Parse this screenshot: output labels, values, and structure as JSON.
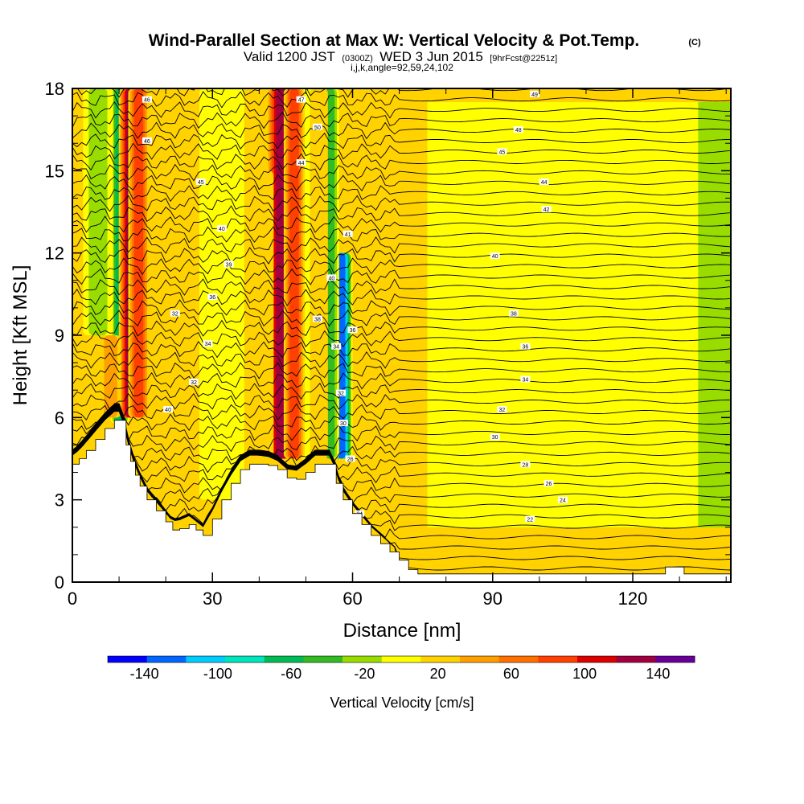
{
  "header": {
    "title": "Wind-Parallel Section at Max W: Vertical Velocity & Pot.Temp.",
    "copyright": "(C)",
    "valid_prefix": "Valid 1200 JST",
    "valid_utc": "(0300Z)",
    "valid_date": "WED 3 Jun 2015",
    "forecast": "[9hrFcst@2251z]",
    "indices": "i,j,k,angle=92,59,24,102"
  },
  "chart_data": {
    "type": "heatmap",
    "xlabel": "Distance [nm]",
    "ylabel": "Height [Kft MSL]",
    "xlim": [
      0,
      141
    ],
    "ylim": [
      0,
      18
    ],
    "xticks": [
      "0",
      "30",
      "60",
      "90",
      "120"
    ],
    "yticks": [
      "0",
      "3",
      "6",
      "9",
      "12",
      "15",
      "18"
    ],
    "grid": false,
    "contour_field": "potential temperature",
    "colorbar": {
      "label": "Vertical Velocity [cm/s]",
      "tick_labels": [
        "-140",
        "-100",
        "-60",
        "-20",
        "20",
        "60",
        "100",
        "140"
      ],
      "bins": [
        -160,
        -140,
        -120,
        -100,
        -80,
        -60,
        -40,
        -20,
        0,
        20,
        40,
        60,
        80,
        100,
        120,
        140,
        160
      ],
      "colors": [
        "#0000ff",
        "#0066ff",
        "#00ccff",
        "#00e5bb",
        "#00bb55",
        "#33bb22",
        "#99dd00",
        "#ffff00",
        "#ffd200",
        "#ffa000",
        "#ff7000",
        "#ff4000",
        "#dd0000",
        "#a00040",
        "#660099"
      ]
    },
    "background_bin_color": "#99dd00",
    "terrain_height_kft": [
      [
        0,
        4.3
      ],
      [
        1.5,
        4.5
      ],
      [
        3,
        4.8
      ],
      [
        5,
        5.2
      ],
      [
        7,
        5.6
      ],
      [
        9,
        5.9
      ],
      [
        10.5,
        5.9
      ],
      [
        11.5,
        5.0
      ],
      [
        12.5,
        4.4
      ],
      [
        13.5,
        3.9
      ],
      [
        14.5,
        3.5
      ],
      [
        16,
        3.0
      ],
      [
        18,
        2.6
      ],
      [
        20,
        2.2
      ],
      [
        21.5,
        1.9
      ],
      [
        23,
        1.95
      ],
      [
        25,
        2.1
      ],
      [
        26.5,
        1.9
      ],
      [
        28,
        1.7
      ],
      [
        30,
        2.3
      ],
      [
        32,
        3.0
      ],
      [
        34,
        3.6
      ],
      [
        36,
        4.1
      ],
      [
        38,
        4.3
      ],
      [
        40,
        4.3
      ],
      [
        42,
        4.25
      ],
      [
        44,
        4.1
      ],
      [
        46,
        3.8
      ],
      [
        48,
        3.75
      ],
      [
        50,
        4.0
      ],
      [
        52,
        4.3
      ],
      [
        54,
        4.3
      ],
      [
        55.5,
        4.3
      ],
      [
        56.5,
        3.6
      ],
      [
        58,
        3.0
      ],
      [
        60,
        2.5
      ],
      [
        62,
        2.1
      ],
      [
        64,
        1.7
      ],
      [
        66,
        1.4
      ],
      [
        68,
        1.1
      ],
      [
        70,
        0.8
      ],
      [
        72,
        0.45
      ],
      [
        74,
        0.3
      ],
      [
        76,
        0.3
      ],
      [
        126,
        0.3
      ],
      [
        127,
        0.55
      ],
      [
        130,
        0.55
      ],
      [
        131,
        0.3
      ],
      [
        141,
        0.3
      ]
    ],
    "updraft_columns": [
      {
        "x": 12.5,
        "width_nm": 1.6,
        "w": 110,
        "zmin": 6.0,
        "zmax": 18
      },
      {
        "x": 14.2,
        "width_nm": 1.4,
        "w": 80,
        "zmin": 6.0,
        "zmax": 18
      },
      {
        "x": 44.8,
        "width_nm": 2.0,
        "w": 110,
        "zmin": 4.5,
        "zmax": 18
      },
      {
        "x": 47.5,
        "width_nm": 1.4,
        "w": 70,
        "zmin": 4.5,
        "zmax": 18
      },
      {
        "x": 8.2,
        "width_nm": 1.4,
        "w": 30,
        "zmin": 6.0,
        "zmax": 9
      },
      {
        "x": 18.5,
        "width_nm": 1.5,
        "w": 25,
        "zmin": 3.0,
        "zmax": 18
      },
      {
        "x": 22.5,
        "width_nm": 1.6,
        "w": 25,
        "zmin": 2.5,
        "zmax": 12
      },
      {
        "x": 40.5,
        "width_nm": 1.6,
        "w": 28,
        "zmin": 4.5,
        "zmax": 15
      },
      {
        "x": 52.8,
        "width_nm": 1.2,
        "w": 25,
        "zmin": 4.5,
        "zmax": 18
      }
    ],
    "downdraft_columns": [
      {
        "x": 10.2,
        "width_nm": 1.3,
        "w": -70,
        "zmin": 5.8,
        "zmax": 18
      },
      {
        "x": 15.6,
        "width_nm": 1.3,
        "w": -130,
        "zmin": 6.5,
        "zmax": 18
      },
      {
        "x": 57.6,
        "width_nm": 1.5,
        "w": -140,
        "zmin": 4.5,
        "zmax": 12
      },
      {
        "x": 55.2,
        "width_nm": 1.2,
        "w": -60,
        "zmin": 4.5,
        "zmax": 18
      },
      {
        "x": 5.5,
        "width_nm": 2.0,
        "w": -30,
        "zmin": 9,
        "zmax": 18
      },
      {
        "x": 32.0,
        "width_nm": 3.0,
        "w": -25,
        "zmin": 3.0,
        "zmax": 18
      },
      {
        "x": 50.0,
        "width_nm": 1.8,
        "w": -25,
        "zmin": 4.5,
        "zmax": 18
      }
    ],
    "sinking_region": {
      "x_from": 76,
      "w": -20,
      "z_from": 2.0,
      "z_to": 17.5
    },
    "theta_contour_labels": [
      {
        "x": 16,
        "z": 17.6,
        "label": "46"
      },
      {
        "x": 16,
        "z": 16.1,
        "label": "46"
      },
      {
        "x": 27.5,
        "z": 14.6,
        "label": "45"
      },
      {
        "x": 32,
        "z": 12.9,
        "label": "40"
      },
      {
        "x": 33.5,
        "z": 11.6,
        "label": "39"
      },
      {
        "x": 30,
        "z": 10.4,
        "label": "36"
      },
      {
        "x": 22,
        "z": 9.8,
        "label": "32"
      },
      {
        "x": 29,
        "z": 8.7,
        "label": "34"
      },
      {
        "x": 26,
        "z": 7.3,
        "label": "32"
      },
      {
        "x": 20.5,
        "z": 6.3,
        "label": "40"
      },
      {
        "x": 49,
        "z": 17.6,
        "label": "47"
      },
      {
        "x": 52.5,
        "z": 16.6,
        "label": "50"
      },
      {
        "x": 49,
        "z": 15.3,
        "label": "44"
      },
      {
        "x": 59,
        "z": 12.7,
        "label": "41"
      },
      {
        "x": 55.5,
        "z": 11.1,
        "label": "40"
      },
      {
        "x": 52.5,
        "z": 9.6,
        "label": "38"
      },
      {
        "x": 60,
        "z": 9.2,
        "label": "36"
      },
      {
        "x": 56.5,
        "z": 8.6,
        "label": "34"
      },
      {
        "x": 57.5,
        "z": 6.9,
        "label": "32"
      },
      {
        "x": 58,
        "z": 5.8,
        "label": "30"
      },
      {
        "x": 59.5,
        "z": 4.5,
        "label": "26"
      },
      {
        "x": 61.5,
        "z": 2.5,
        "label": "24"
      },
      {
        "x": 99,
        "z": 17.8,
        "label": "49"
      },
      {
        "x": 95.5,
        "z": 16.5,
        "label": "48"
      },
      {
        "x": 92,
        "z": 15.7,
        "label": "45"
      },
      {
        "x": 101,
        "z": 14.6,
        "label": "44"
      },
      {
        "x": 101.5,
        "z": 13.6,
        "label": "42"
      },
      {
        "x": 90.5,
        "z": 11.9,
        "label": "40"
      },
      {
        "x": 94.5,
        "z": 9.8,
        "label": "38"
      },
      {
        "x": 97,
        "z": 8.6,
        "label": "36"
      },
      {
        "x": 97,
        "z": 7.4,
        "label": "34"
      },
      {
        "x": 92,
        "z": 6.3,
        "label": "32"
      },
      {
        "x": 90.5,
        "z": 5.3,
        "label": "30"
      },
      {
        "x": 97,
        "z": 4.3,
        "label": "28"
      },
      {
        "x": 102,
        "z": 3.6,
        "label": "26"
      },
      {
        "x": 105,
        "z": 3.0,
        "label": "24"
      },
      {
        "x": 98,
        "z": 2.3,
        "label": "22"
      }
    ]
  }
}
